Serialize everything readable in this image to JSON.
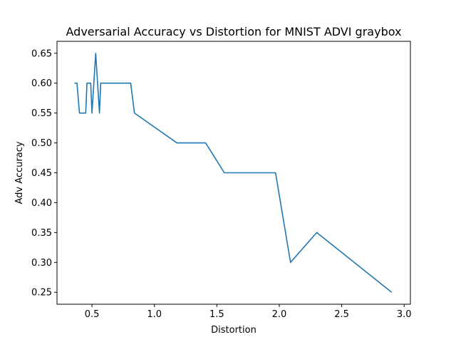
{
  "chart_data": {
    "type": "line",
    "title": "Adversarial Accuracy vs Distortion for MNIST ADVI graybox",
    "xlabel": "Distortion",
    "ylabel": "Adv Accuracy",
    "xlim": [
      0.22,
      3.05
    ],
    "ylim": [
      0.23,
      0.67
    ],
    "xticks": [
      0.5,
      1.0,
      1.5,
      2.0,
      2.5,
      3.0
    ],
    "xtick_labels": [
      "0.5",
      "1.0",
      "1.5",
      "2.0",
      "2.5",
      "3.0"
    ],
    "yticks": [
      0.25,
      0.3,
      0.35,
      0.4,
      0.45,
      0.5,
      0.55,
      0.6,
      0.65
    ],
    "ytick_labels": [
      "0.25",
      "0.30",
      "0.35",
      "0.40",
      "0.45",
      "0.50",
      "0.55",
      "0.60",
      "0.65"
    ],
    "grid": false,
    "series": [
      {
        "color": "#1f77b4",
        "x": [
          0.36,
          0.38,
          0.4,
          0.45,
          0.46,
          0.49,
          0.5,
          0.53,
          0.56,
          0.57,
          0.81,
          0.84,
          1.18,
          1.41,
          1.56,
          1.97,
          2.09,
          2.3,
          2.9
        ],
        "y": [
          0.6,
          0.6,
          0.55,
          0.55,
          0.6,
          0.6,
          0.55,
          0.65,
          0.55,
          0.6,
          0.6,
          0.55,
          0.5,
          0.5,
          0.45,
          0.45,
          0.3,
          0.35,
          0.25
        ]
      }
    ]
  }
}
